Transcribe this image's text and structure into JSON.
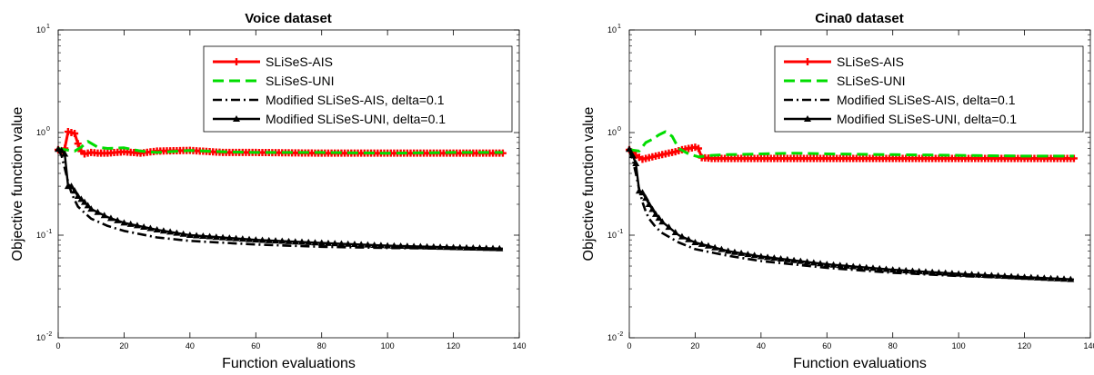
{
  "chart_data": [
    {
      "type": "line",
      "title": "Voice dataset",
      "xlabel": "Function evaluations",
      "ylabel": "Objective function value",
      "xlim": [
        0,
        140
      ],
      "ylim": [
        0.01,
        10
      ],
      "yscale": "log",
      "xticks": [
        "0",
        "20",
        "40",
        "60",
        "80",
        "100",
        "120",
        "140"
      ],
      "yticks": [
        {
          "base": "10",
          "exp": "1",
          "value": 10
        },
        {
          "base": "10",
          "exp": "0",
          "value": 1
        },
        {
          "base": "10",
          "exp": "-1",
          "value": 0.1
        },
        {
          "base": "10",
          "exp": "-2",
          "value": 0.01
        }
      ],
      "legend_position": "top-right",
      "series": [
        {
          "name": "SLiSeS-AIS",
          "color": "#ff0000",
          "style": "solid-plus",
          "x": [
            0,
            1,
            2,
            3,
            4,
            5,
            6,
            7,
            8,
            10,
            12,
            15,
            20,
            25,
            30,
            40,
            50,
            60,
            80,
            100,
            120,
            135
          ],
          "y": [
            0.68,
            0.64,
            0.7,
            1.02,
            1.0,
            0.98,
            0.78,
            0.66,
            0.62,
            0.64,
            0.63,
            0.63,
            0.65,
            0.63,
            0.66,
            0.67,
            0.64,
            0.64,
            0.63,
            0.63,
            0.63,
            0.63
          ]
        },
        {
          "name": "SLiSeS-UNI",
          "color": "#00dd00",
          "style": "dash",
          "x": [
            0,
            2,
            5,
            7,
            9,
            12,
            15,
            20,
            25,
            30,
            40,
            50,
            60,
            80,
            100,
            120,
            135
          ],
          "y": [
            0.7,
            0.68,
            0.66,
            0.72,
            0.82,
            0.72,
            0.7,
            0.71,
            0.66,
            0.64,
            0.67,
            0.65,
            0.64,
            0.64,
            0.63,
            0.64,
            0.64
          ]
        },
        {
          "name": "Modified SLiSeS-AIS, delta=0.1",
          "color": "#000000",
          "style": "dashdot",
          "x": [
            0,
            1,
            2,
            3,
            4,
            5,
            6,
            8,
            10,
            15,
            20,
            30,
            40,
            60,
            80,
            100,
            120,
            135
          ],
          "y": [
            0.68,
            0.6,
            0.45,
            0.33,
            0.26,
            0.22,
            0.19,
            0.165,
            0.145,
            0.123,
            0.11,
            0.095,
            0.088,
            0.081,
            0.077,
            0.075,
            0.074,
            0.073
          ]
        },
        {
          "name": "Modified SLiSeS-UNI, delta=0.1",
          "color": "#000000",
          "style": "solid-triangle",
          "x": [
            0,
            1,
            2,
            3,
            4,
            5,
            6,
            8,
            10,
            15,
            20,
            30,
            40,
            60,
            80,
            100,
            120,
            135
          ],
          "y": [
            0.69,
            0.67,
            0.62,
            0.3,
            0.3,
            0.27,
            0.24,
            0.21,
            0.18,
            0.15,
            0.132,
            0.113,
            0.1,
            0.09,
            0.084,
            0.079,
            0.076,
            0.074
          ]
        }
      ]
    },
    {
      "type": "line",
      "title": "Cina0 dataset",
      "xlabel": "Function evaluations",
      "ylabel": "Objective function value",
      "xlim": [
        0,
        140
      ],
      "ylim": [
        0.01,
        10
      ],
      "yscale": "log",
      "xticks": [
        "0",
        "20",
        "40",
        "60",
        "80",
        "100",
        "120",
        "140"
      ],
      "yticks": [
        {
          "base": "10",
          "exp": "1",
          "value": 10
        },
        {
          "base": "10",
          "exp": "0",
          "value": 1
        },
        {
          "base": "10",
          "exp": "-1",
          "value": 0.1
        },
        {
          "base": "10",
          "exp": "-2",
          "value": 0.01
        }
      ],
      "legend_position": "top-right",
      "series": [
        {
          "name": "SLiSeS-AIS",
          "color": "#ff0000",
          "style": "solid-plus",
          "x": [
            0,
            2,
            4,
            6,
            8,
            10,
            12,
            14,
            16,
            18,
            20,
            21,
            22,
            25,
            30,
            40,
            60,
            80,
            100,
            120,
            135
          ],
          "y": [
            0.68,
            0.6,
            0.55,
            0.57,
            0.59,
            0.61,
            0.63,
            0.65,
            0.68,
            0.7,
            0.72,
            0.7,
            0.57,
            0.56,
            0.56,
            0.56,
            0.56,
            0.56,
            0.56,
            0.56,
            0.56
          ]
        },
        {
          "name": "SLiSeS-UNI",
          "color": "#00dd00",
          "style": "dash",
          "x": [
            0,
            3,
            5,
            7,
            9,
            11,
            13,
            15,
            18,
            21,
            25,
            30,
            40,
            50,
            60,
            80,
            100,
            120,
            135
          ],
          "y": [
            0.68,
            0.66,
            0.8,
            0.86,
            0.95,
            1.02,
            0.92,
            0.7,
            0.62,
            0.58,
            0.6,
            0.61,
            0.62,
            0.63,
            0.62,
            0.61,
            0.6,
            0.59,
            0.59
          ]
        },
        {
          "name": "Modified SLiSeS-AIS, delta=0.1",
          "color": "#000000",
          "style": "dashdot",
          "x": [
            0,
            1,
            2,
            3,
            4,
            5,
            6,
            8,
            10,
            15,
            20,
            30,
            40,
            60,
            80,
            100,
            120,
            135
          ],
          "y": [
            0.68,
            0.55,
            0.4,
            0.28,
            0.21,
            0.17,
            0.145,
            0.12,
            0.105,
            0.085,
            0.073,
            0.063,
            0.056,
            0.048,
            0.043,
            0.04,
            0.038,
            0.037
          ]
        },
        {
          "name": "Modified SLiSeS-UNI, delta=0.1",
          "color": "#000000",
          "style": "solid-triangle",
          "x": [
            0,
            1,
            2,
            3,
            4,
            5,
            6,
            8,
            10,
            15,
            20,
            30,
            40,
            60,
            80,
            100,
            120,
            135
          ],
          "y": [
            0.69,
            0.6,
            0.5,
            0.27,
            0.26,
            0.23,
            0.2,
            0.16,
            0.135,
            0.1,
            0.085,
            0.07,
            0.062,
            0.052,
            0.046,
            0.042,
            0.039,
            0.037
          ]
        }
      ]
    }
  ]
}
